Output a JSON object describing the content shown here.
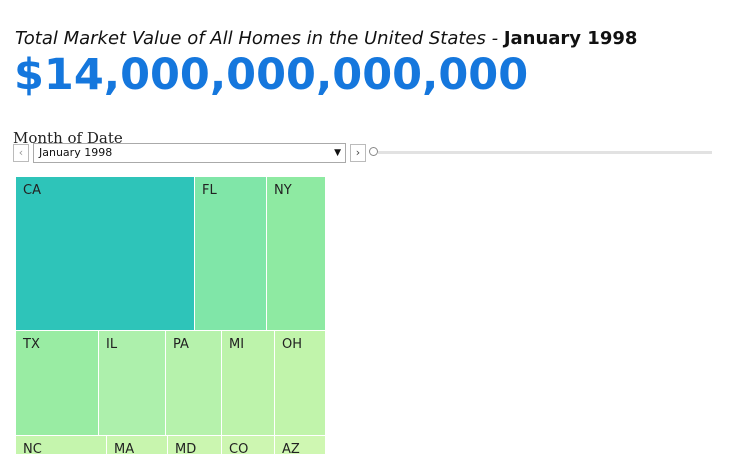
{
  "header": {
    "title": "Total Market Value of All Homes in the United States - ",
    "title_date": "January 1998",
    "value": "$14,000,000,000,000"
  },
  "filter": {
    "label": "Month of Date",
    "selected": "January 1998"
  },
  "treemap": {
    "cells": [
      {
        "label": "CA"
      },
      {
        "label": "FL"
      },
      {
        "label": "NY"
      },
      {
        "label": "TX"
      },
      {
        "label": "IL"
      },
      {
        "label": "PA"
      },
      {
        "label": "MI"
      },
      {
        "label": "OH"
      },
      {
        "label": "NC"
      },
      {
        "label": "MA"
      },
      {
        "label": "MD"
      },
      {
        "label": "CO"
      },
      {
        "label": "AZ"
      }
    ]
  }
}
